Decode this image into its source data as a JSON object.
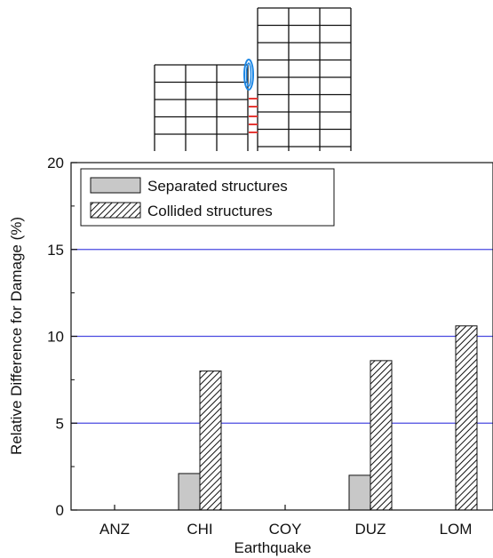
{
  "chart_data": {
    "type": "bar",
    "title": "",
    "xlabel": "Earthquake",
    "ylabel": "Relative Difference for Damage (%)",
    "categories": [
      "ANZ",
      "CHI",
      "COY",
      "DUZ",
      "LOM"
    ],
    "ylim": [
      0,
      20
    ],
    "yticks": [
      "0",
      "5",
      "10",
      "15",
      "20"
    ],
    "grid": true,
    "grid_color": "#4a4ae0",
    "legend_position": "top-left",
    "series": [
      {
        "name": "Separated structures",
        "values": [
          0,
          2.1,
          0,
          2.0,
          0
        ],
        "fill": "#c8c8c8",
        "pattern": "solid"
      },
      {
        "name": "Collided structures",
        "values": [
          0,
          8.0,
          0,
          8.6,
          10.6
        ],
        "fill": "#ffffff",
        "pattern": "diagonal-hatch"
      }
    ]
  },
  "diagram": {
    "left_building": {
      "stories": 5,
      "bays": 3
    },
    "right_building": {
      "stories": 8,
      "bays": 3
    },
    "marker_color": "#1e88e5",
    "pounding_color": "#e53935"
  }
}
